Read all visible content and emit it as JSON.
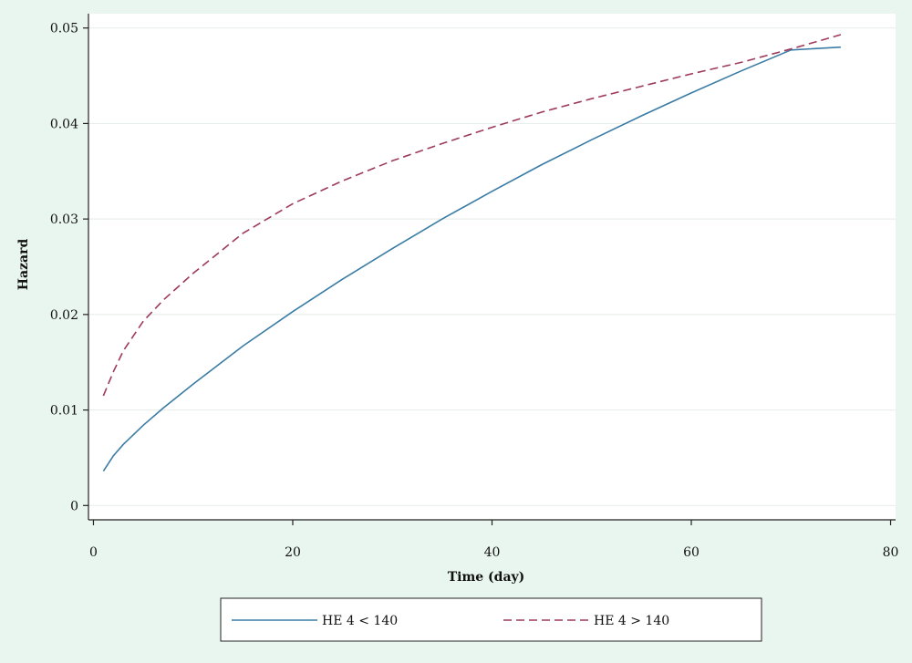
{
  "chart_data": {
    "type": "line",
    "xlabel": "Time (day)",
    "ylabel": "Hazard",
    "xlim": [
      -0.5,
      80.5
    ],
    "ylim": [
      -0.0015,
      0.0515
    ],
    "x_ticks": [
      0,
      20,
      40,
      60,
      80
    ],
    "y_ticks": [
      0,
      0.01,
      0.02,
      0.03,
      0.04,
      0.05
    ],
    "y_tick_labels": [
      "0",
      "0.01",
      "0.02",
      "0.03",
      "0.04",
      "0.05"
    ],
    "grid": true,
    "legend_position": "bottom",
    "series": [
      {
        "name": "HE 4 < 140",
        "style": "solid",
        "color": "#3a7ca5",
        "x": [
          1,
          2,
          3,
          5,
          7,
          10,
          15,
          20,
          25,
          30,
          35,
          40,
          45,
          50,
          55,
          60,
          65,
          70,
          75
        ],
        "y": [
          0.0036,
          0.0052,
          0.0064,
          0.0084,
          0.0102,
          0.0127,
          0.0167,
          0.0203,
          0.0237,
          0.0269,
          0.03,
          0.0329,
          0.0357,
          0.0383,
          0.0408,
          0.0432,
          0.0455,
          0.0477,
          0.048
        ]
      },
      {
        "name": "HE 4 > 140",
        "style": "dashed",
        "color": "#9e3a5c",
        "x": [
          1,
          2,
          3,
          5,
          7,
          10,
          15,
          20,
          25,
          30,
          35,
          40,
          45,
          50,
          55,
          60,
          65,
          70,
          75
        ],
        "y": [
          0.0115,
          0.014,
          0.0162,
          0.0193,
          0.0215,
          0.0243,
          0.0285,
          0.0316,
          0.034,
          0.0361,
          0.0379,
          0.0396,
          0.0412,
          0.0426,
          0.0439,
          0.0452,
          0.0464,
          0.0478,
          0.0493
        ]
      }
    ]
  },
  "colors": {
    "page_background": "#e9f6ef",
    "plot_background": "#ffffff",
    "grid": "#e8efea",
    "axis": "#222222"
  }
}
